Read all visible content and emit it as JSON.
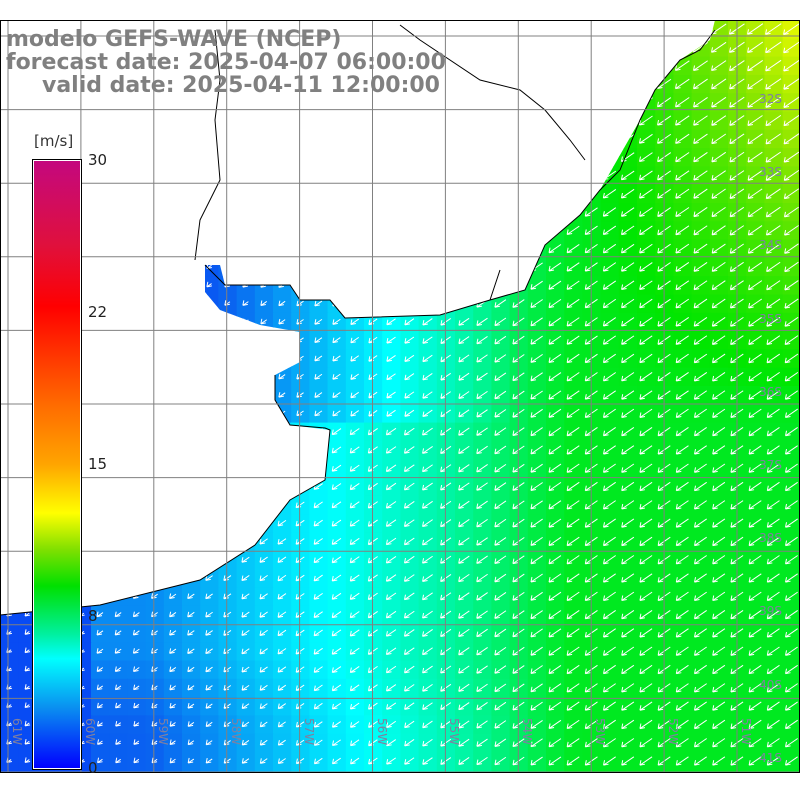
{
  "title": {
    "model": "modelo GEFS-WAVE (NCEP)",
    "forecast": "forecast date: 2025-04-07 06:00:00",
    "valid": "valid date: 2025-04-11 12:00:00"
  },
  "colorbar": {
    "unit": "[m/s]",
    "ticks": [
      "30",
      "22",
      "15",
      "8",
      "0"
    ],
    "range": [
      0,
      30
    ]
  },
  "lat_labels": [
    "32S",
    "33S",
    "34S",
    "35S",
    "36S",
    "37S",
    "38S",
    "39S",
    "40S",
    "41S"
  ],
  "lon_labels": [
    "61W",
    "60W",
    "59W",
    "58W",
    "57W",
    "56W",
    "55W",
    "54W",
    "53W",
    "52W",
    "51W"
  ],
  "colors": {
    "land": "#ffffff",
    "grid": "#808080",
    "coast": "#000000",
    "arrow": "#ffffff"
  }
}
